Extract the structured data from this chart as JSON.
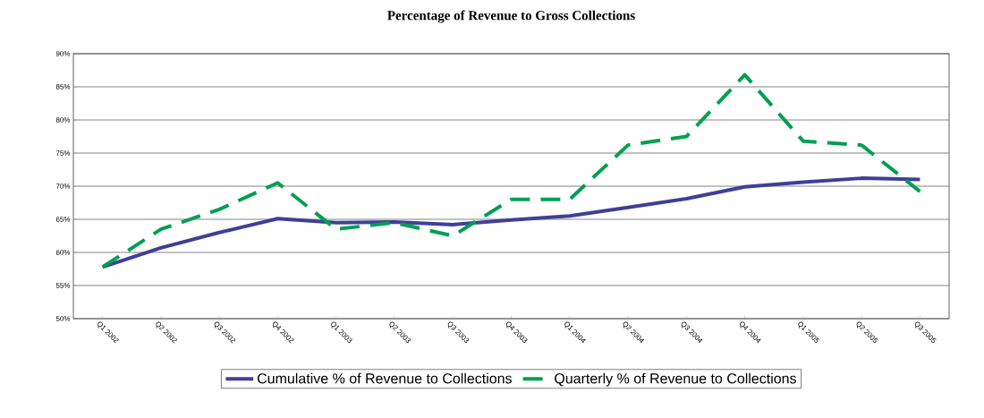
{
  "chart_data": {
    "type": "line",
    "title": "Percentage of Revenue to Gross Collections",
    "categories": [
      "Q1 2002",
      "Q2 2002",
      "Q3 2002",
      "Q4 2002",
      "Q1 2003",
      "Q2 2003",
      "Q3 2003",
      "Q4 2003",
      "Q1 2004",
      "Q2 2004",
      "Q3 2004",
      "Q4 2004",
      "Q1 2005",
      "Q2 2005",
      "Q3 2005"
    ],
    "series": [
      {
        "name": "Cumulative % of Revenue to Collections",
        "color": "#3f3f9a",
        "line_style": "solid",
        "values": [
          57.8,
          60.7,
          63.0,
          65.1,
          64.5,
          64.6,
          64.2,
          64.9,
          65.5,
          66.8,
          68.1,
          69.9,
          70.6,
          71.2,
          71.0
        ]
      },
      {
        "name": "Quarterly % of Revenue to Collections",
        "color": "#00a050",
        "line_style": "dashed",
        "values": [
          57.8,
          63.5,
          66.5,
          70.5,
          63.5,
          64.5,
          62.5,
          68.0,
          68.0,
          76.2,
          77.5,
          86.8,
          76.8,
          76.2,
          69.2
        ]
      }
    ],
    "ylim": [
      50,
      90
    ],
    "yticks": [
      {
        "value": 50,
        "label": "50%"
      },
      {
        "value": 55,
        "label": "55%"
      },
      {
        "value": 60,
        "label": "60%"
      },
      {
        "value": 65,
        "label": "65%"
      },
      {
        "value": 70,
        "label": "70%"
      },
      {
        "value": 75,
        "label": "75%"
      },
      {
        "value": 80,
        "label": "80%"
      },
      {
        "value": 85,
        "label": "85%"
      },
      {
        "value": 90,
        "label": "90%"
      }
    ],
    "grid": "y",
    "legend": "bottom",
    "marker": "none"
  }
}
